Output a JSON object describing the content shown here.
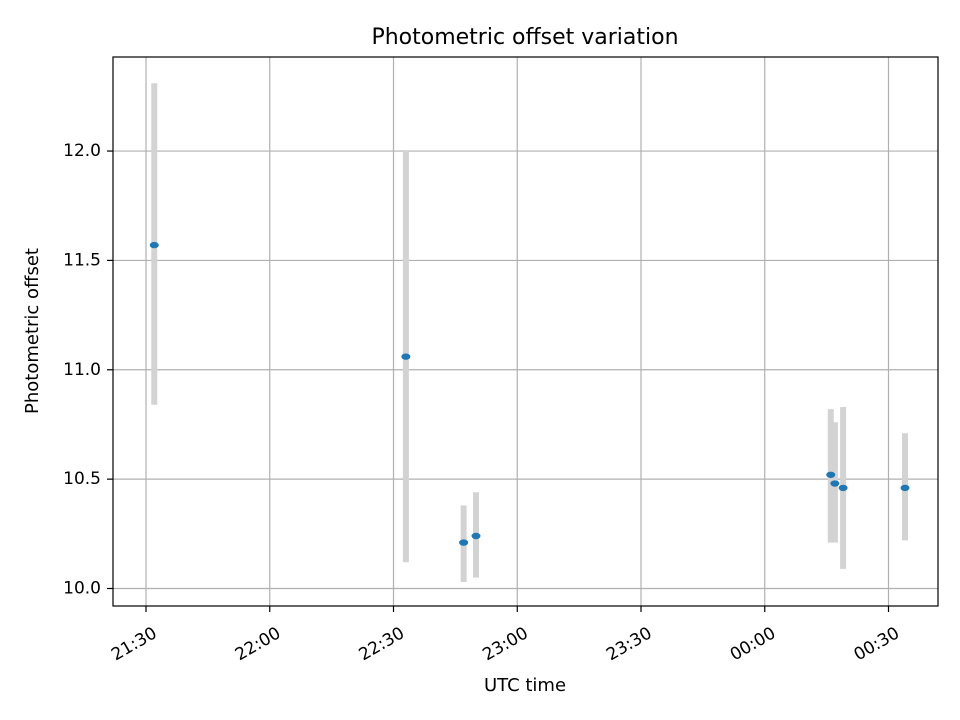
{
  "chart_data": {
    "type": "scatter",
    "title": "Photometric offset variation",
    "xlabel": "UTC time",
    "ylabel": "Photometric offset",
    "x_axis_type": "time",
    "x_range": [
      "21:22",
      "00:42"
    ],
    "ylim": [
      9.92,
      12.43
    ],
    "x_ticks": [
      {
        "time": "21:30",
        "label": "21:30"
      },
      {
        "time": "22:00",
        "label": "22:00"
      },
      {
        "time": "22:30",
        "label": "22:30"
      },
      {
        "time": "23:00",
        "label": "23:00"
      },
      {
        "time": "23:30",
        "label": "23:30"
      },
      {
        "time": "00:00",
        "label": "00:00"
      },
      {
        "time": "00:30",
        "label": "00:30"
      }
    ],
    "y_ticks": [
      {
        "value": 10.0,
        "label": "10.0"
      },
      {
        "value": 10.5,
        "label": "10.5"
      },
      {
        "value": 11.0,
        "label": "11.0"
      },
      {
        "value": 11.5,
        "label": "11.5"
      },
      {
        "value": 12.0,
        "label": "12.0"
      }
    ],
    "grid": true,
    "marker_color": "#1f77b4",
    "errorbar_color": "#d3d3d3",
    "points": [
      {
        "time": "21:32",
        "y": 11.57,
        "y_low": 10.84,
        "y_high": 12.31
      },
      {
        "time": "22:33",
        "y": 11.06,
        "y_low": 10.12,
        "y_high": 12.0
      },
      {
        "time": "22:47",
        "y": 10.21,
        "y_low": 10.03,
        "y_high": 10.38
      },
      {
        "time": "22:50",
        "y": 10.24,
        "y_low": 10.05,
        "y_high": 10.44
      },
      {
        "time": "00:16",
        "y": 10.52,
        "y_low": 10.21,
        "y_high": 10.82
      },
      {
        "time": "00:17",
        "y": 10.48,
        "y_low": 10.21,
        "y_high": 10.76
      },
      {
        "time": "00:19",
        "y": 10.46,
        "y_low": 10.09,
        "y_high": 10.83
      },
      {
        "time": "00:34",
        "y": 10.46,
        "y_low": 10.22,
        "y_high": 10.71
      }
    ]
  }
}
